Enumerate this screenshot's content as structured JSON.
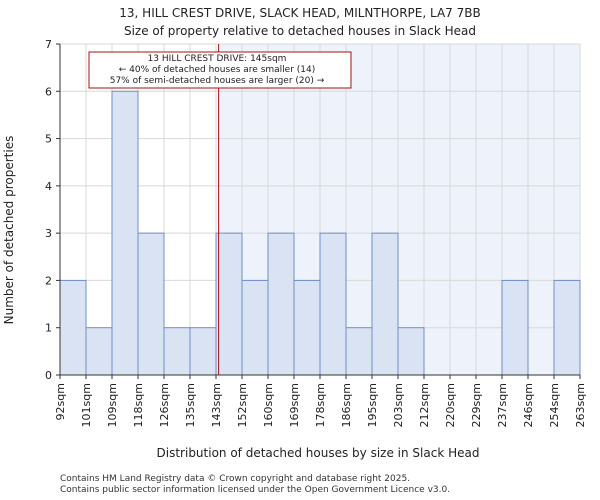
{
  "chart_data": {
    "type": "bar",
    "title_line1": "13, HILL CREST DRIVE, SLACK HEAD, MILNTHORPE, LA7 7BB",
    "title_line2": "Size of property relative to detached houses in Slack Head",
    "xlabel": "Distribution of detached houses by size in Slack Head",
    "ylabel": "Number of detached properties",
    "categories": [
      "92sqm",
      "101sqm",
      "109sqm",
      "118sqm",
      "126sqm",
      "135sqm",
      "143sqm",
      "152sqm",
      "160sqm",
      "169sqm",
      "178sqm",
      "186sqm",
      "195sqm",
      "203sqm",
      "212sqm",
      "220sqm",
      "229sqm",
      "237sqm",
      "246sqm",
      "254sqm",
      "263sqm"
    ],
    "values": [
      2,
      1,
      6,
      3,
      1,
      1,
      3,
      2,
      3,
      2,
      3,
      1,
      3,
      1,
      0,
      0,
      0,
      2,
      0,
      2,
      0
    ],
    "ylim": [
      0,
      7
    ],
    "yticks": [
      0,
      1,
      2,
      3,
      4,
      5,
      6,
      7
    ],
    "grid": true,
    "property_marker": {
      "value_sqm": 145,
      "bin_position": 6.1
    },
    "annotation": {
      "line1": "13 HILL CREST DRIVE: 145sqm",
      "line2": "← 40% of detached houses are smaller (14)",
      "line3": "57% of semi-detached houses are larger (20) →"
    },
    "colors": {
      "bar_fill": "#dae3f4",
      "bar_stroke": "#6e8fc4",
      "highlight_bg": "#eef2fa",
      "marker": "#aa1111",
      "grid": "#d8d8d8"
    }
  },
  "footer": {
    "line1": "Contains HM Land Registry data © Crown copyright and database right 2025.",
    "line2": "Contains public sector information licensed under the Open Government Licence v3.0."
  }
}
